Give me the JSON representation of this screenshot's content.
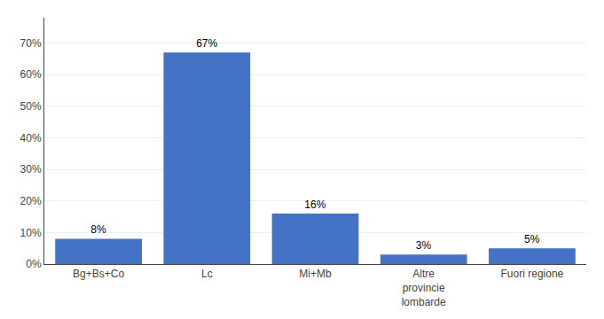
{
  "chart_data": {
    "type": "bar",
    "categories": [
      "Bg+Bs+Co",
      "Lc",
      "Mi+Mb",
      "Altre\nprovincie\nlombarde",
      "Fuori regione"
    ],
    "values": [
      8,
      67,
      16,
      3,
      5
    ],
    "value_labels": [
      "8%",
      "67%",
      "16%",
      "3%",
      "5%"
    ],
    "data_labels": true,
    "color": "#4472C4",
    "ylim": [
      0,
      78
    ],
    "yticks": [
      {
        "value": 0,
        "label": "0%"
      },
      {
        "value": 10,
        "label": "10%"
      },
      {
        "value": 20,
        "label": "20%"
      },
      {
        "value": 30,
        "label": "30%"
      },
      {
        "value": 40,
        "label": "40%"
      },
      {
        "value": 50,
        "label": "50%"
      },
      {
        "value": 60,
        "label": "60%"
      },
      {
        "value": 70,
        "label": "70%"
      }
    ],
    "grid": true
  }
}
